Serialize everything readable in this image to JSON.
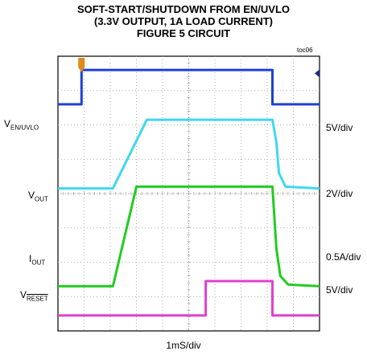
{
  "header": {
    "title_lines": [
      "SOFT-START/SHUTDOWN FROM EN/UVLO",
      "(3.3V OUTPUT, 1A LOAD CURRENT)",
      "FIGURE 5 CIRCUIT"
    ],
    "figure_id": "toc06"
  },
  "labels": {
    "en_main": "V",
    "en_sub": "EN/UVLO",
    "vout_main": "V",
    "vout_sub": "OUT",
    "iout_main": "I",
    "iout_sub": "OUT",
    "vreset_main": "V",
    "vreset_sub": "RESET"
  },
  "scales": {
    "en": "5V/div",
    "vout": "2V/div",
    "iout": "0.5A/div",
    "vreset": "5V/div"
  },
  "xlabel": "1mS/div",
  "colors": {
    "en": "#1f3fd6",
    "vout": "#3fd8f0",
    "iout": "#22cc22",
    "vreset": "#e040d0",
    "grid": "#9a9a9a",
    "frame": "#000000",
    "trigger": "#e08a1a"
  },
  "chart_data": {
    "type": "line",
    "title": "SOFT-START/SHUTDOWN FROM EN/UVLO (3.3V OUTPUT, 1A LOAD CURRENT) FIGURE 5 CIRCUIT",
    "xlabel": "1mS/div",
    "x_unit": "div",
    "y_unit": "div",
    "xlim": [
      0,
      10
    ],
    "ylim": [
      0,
      8
    ],
    "grid": true,
    "divisions": {
      "x": 10,
      "y": 8
    },
    "series": [
      {
        "key": "en",
        "name": "VEN/UVLO",
        "scale": "5V/div",
        "points": [
          [
            0,
            6.6
          ],
          [
            0.9,
            6.6
          ],
          [
            0.9,
            7.6
          ],
          [
            8.2,
            7.6
          ],
          [
            8.2,
            6.6
          ],
          [
            10,
            6.6
          ]
        ]
      },
      {
        "key": "vout",
        "name": "VOUT",
        "scale": "2V/div",
        "points": [
          [
            0,
            4.15
          ],
          [
            2.1,
            4.15
          ],
          [
            3.4,
            6.15
          ],
          [
            8.2,
            6.15
          ],
          [
            8.35,
            5.5
          ],
          [
            8.45,
            4.6
          ],
          [
            8.7,
            4.2
          ],
          [
            10,
            4.15
          ]
        ]
      },
      {
        "key": "iout",
        "name": "IOUT",
        "scale": "0.5A/div",
        "points": [
          [
            0,
            1.3
          ],
          [
            2.1,
            1.3
          ],
          [
            3.0,
            4.2
          ],
          [
            8.2,
            4.2
          ],
          [
            8.35,
            2.4
          ],
          [
            8.5,
            1.6
          ],
          [
            8.8,
            1.35
          ],
          [
            10,
            1.3
          ]
        ]
      },
      {
        "key": "vreset",
        "name": "VRESET",
        "scale": "5V/div",
        "points": [
          [
            0,
            0.45
          ],
          [
            5.65,
            0.45
          ],
          [
            5.65,
            1.45
          ],
          [
            8.2,
            1.45
          ],
          [
            8.2,
            0.45
          ],
          [
            10,
            0.45
          ]
        ]
      }
    ]
  }
}
